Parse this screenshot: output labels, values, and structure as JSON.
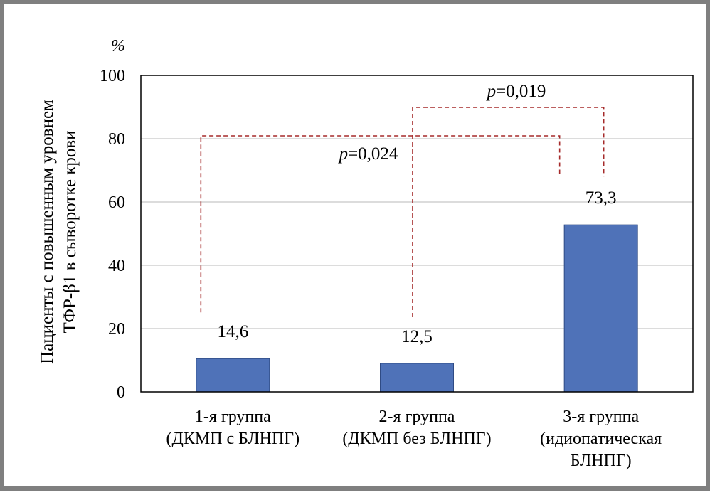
{
  "chart_data": {
    "type": "bar",
    "ylabel_lines": [
      "Пациенты с повышенным уровнем",
      "ТФР-β1 в сыворотке крови"
    ],
    "yunit": "%",
    "ylim": [
      0,
      100
    ],
    "yticks": [
      "0",
      "20",
      "40",
      "60",
      "80",
      "100"
    ],
    "ytick_values": [
      0,
      20,
      40,
      60,
      80,
      100
    ],
    "grid": true,
    "categories": [
      [
        "1-я группа",
        "(ДКМП с БЛНПГ)"
      ],
      [
        "2-я группа",
        "(ДКМП без БЛНПГ)"
      ],
      [
        "3-я группа",
        "(идиопатическая",
        "БЛНПГ)"
      ]
    ],
    "values": [
      14.6,
      12.5,
      73.3
    ],
    "value_labels": [
      "14,6",
      "12,5",
      "73,3"
    ],
    "bar_color": "#4f72b8",
    "bracket_color": "#a52a2a",
    "comparisons": [
      {
        "from": 0,
        "to": 2,
        "p_symbol": "p",
        "p_value": "=0,024"
      },
      {
        "from": 1,
        "to": 2,
        "p_symbol": "p",
        "p_value": "=0,019"
      }
    ]
  }
}
